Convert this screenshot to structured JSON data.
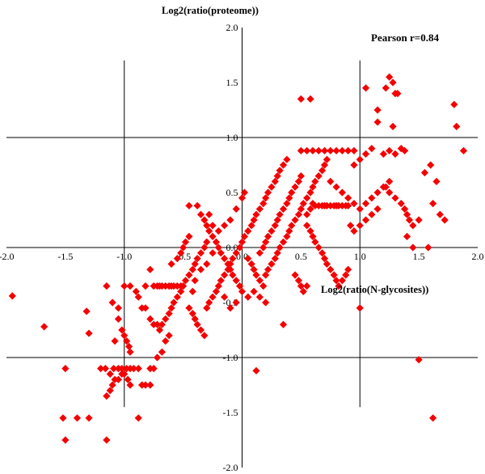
{
  "chart_data": {
    "type": "scatter",
    "title": "",
    "xlabel": "Log2(ratio(N-glycosites))",
    "ylabel": "Log2(ratio(proteome))",
    "annotation": "Pearson r=0.84",
    "xlim": [
      -2.0,
      2.0
    ],
    "ylim": [
      -2.0,
      2.0
    ],
    "x_ticks": [
      "-2.0",
      "-1.5",
      "-1.0",
      "-0.5",
      "0.0",
      "0.5",
      "1.0",
      "1.5",
      "2.0"
    ],
    "y_ticks": [
      "2.0",
      "1.5",
      "1.0",
      "0.5",
      "0.0",
      "-0.5",
      "-1.0",
      "-1.5",
      "-2.0"
    ],
    "threshold_lines": {
      "x": [
        -1.0,
        1.0
      ],
      "y": [
        -1.0,
        1.0
      ]
    },
    "marker": {
      "shape": "diamond",
      "color": "#f50000"
    },
    "grid": false,
    "series": [
      {
        "points": [
          [
            -1.95,
            -0.44
          ],
          [
            -1.68,
            -0.72
          ],
          [
            -1.5,
            -1.1
          ],
          [
            -1.52,
            -1.55
          ],
          [
            -1.5,
            -1.75
          ],
          [
            -1.4,
            -1.55
          ],
          [
            -1.3,
            -1.55
          ],
          [
            -1.32,
            -0.58
          ],
          [
            -1.3,
            -0.78
          ],
          [
            -1.2,
            -1.1
          ],
          [
            -1.16,
            -1.1
          ],
          [
            -1.12,
            -1.15
          ],
          [
            -1.09,
            -1.1
          ],
          [
            -1.05,
            -1.1
          ],
          [
            -1.02,
            -1.1
          ],
          [
            -0.98,
            -1.1
          ],
          [
            -0.95,
            -1.1
          ],
          [
            -0.92,
            -1.1
          ],
          [
            -0.88,
            -1.1
          ],
          [
            -1.15,
            -1.35
          ],
          [
            -1.12,
            -1.3
          ],
          [
            -1.1,
            -1.25
          ],
          [
            -1.08,
            -1.2
          ],
          [
            -1.05,
            -1.2
          ],
          [
            -1.02,
            -1.15
          ],
          [
            -1.0,
            -1.15
          ],
          [
            -0.97,
            -1.2
          ],
          [
            -0.95,
            -1.25
          ],
          [
            -1.15,
            -1.75
          ],
          [
            -0.88,
            -1.55
          ],
          [
            -0.85,
            -1.25
          ],
          [
            -0.82,
            -1.25
          ],
          [
            -0.78,
            -1.25
          ],
          [
            -0.78,
            -1.1
          ],
          [
            -0.75,
            -1.1
          ],
          [
            -0.72,
            -1.0
          ],
          [
            -0.68,
            -0.95
          ],
          [
            -0.65,
            -0.85
          ],
          [
            -0.62,
            -0.8
          ],
          [
            -1.15,
            -0.35
          ],
          [
            -1.1,
            -0.5
          ],
          [
            -1.05,
            -0.55
          ],
          [
            -1.05,
            -0.65
          ],
          [
            -1.02,
            -0.75
          ],
          [
            -1.0,
            -0.8
          ],
          [
            -0.98,
            -0.85
          ],
          [
            -0.96,
            -0.9
          ],
          [
            -0.95,
            -0.95
          ],
          [
            -1.08,
            -0.85
          ],
          [
            -1.0,
            -0.35
          ],
          [
            -0.95,
            -0.35
          ],
          [
            -0.9,
            -0.4
          ],
          [
            -0.88,
            -0.45
          ],
          [
            -0.85,
            -0.55
          ],
          [
            -0.82,
            -0.55
          ],
          [
            -0.78,
            -0.65
          ],
          [
            -0.75,
            -0.7
          ],
          [
            -0.72,
            -0.7
          ],
          [
            -0.7,
            -0.75
          ],
          [
            -0.68,
            -0.7
          ],
          [
            -0.65,
            -0.65
          ],
          [
            -0.62,
            -0.6
          ],
          [
            -0.6,
            -0.55
          ],
          [
            -0.58,
            -0.5
          ],
          [
            -0.55,
            -0.45
          ],
          [
            -0.52,
            -0.4
          ],
          [
            -0.5,
            -0.35
          ],
          [
            -0.48,
            -0.3
          ],
          [
            -0.45,
            -0.25
          ],
          [
            -0.42,
            -0.2
          ],
          [
            -0.4,
            -0.15
          ],
          [
            -0.38,
            -0.1
          ],
          [
            -0.35,
            -0.05
          ],
          [
            -0.32,
            0.0
          ],
          [
            -0.3,
            0.05
          ],
          [
            -0.78,
            -0.2
          ],
          [
            -0.82,
            -0.35
          ],
          [
            -0.75,
            -0.35
          ],
          [
            -0.72,
            -0.35
          ],
          [
            -0.7,
            -0.35
          ],
          [
            -0.68,
            -0.35
          ],
          [
            -0.65,
            -0.35
          ],
          [
            -0.62,
            -0.35
          ],
          [
            -0.6,
            -0.35
          ],
          [
            -0.58,
            -0.35
          ],
          [
            -0.55,
            -0.35
          ],
          [
            -0.52,
            -0.35
          ],
          [
            -0.6,
            -0.15
          ],
          [
            -0.55,
            -0.1
          ],
          [
            -0.52,
            -0.05
          ],
          [
            -0.5,
            0.0
          ],
          [
            -0.48,
            0.05
          ],
          [
            -0.45,
            0.1
          ],
          [
            -0.45,
            0.38
          ],
          [
            -0.38,
            0.38
          ],
          [
            -0.35,
            0.3
          ],
          [
            -0.32,
            0.25
          ],
          [
            -0.3,
            0.2
          ],
          [
            -0.28,
            0.15
          ],
          [
            -0.25,
            0.1
          ],
          [
            -0.22,
            0.05
          ],
          [
            -0.2,
            0.0
          ],
          [
            -0.18,
            -0.05
          ],
          [
            -0.15,
            -0.1
          ],
          [
            -0.12,
            -0.15
          ],
          [
            -0.1,
            -0.2
          ],
          [
            -0.08,
            -0.25
          ],
          [
            -0.05,
            -0.3
          ],
          [
            -0.02,
            -0.35
          ],
          [
            0.0,
            -0.4
          ],
          [
            -0.45,
            -0.55
          ],
          [
            -0.42,
            -0.6
          ],
          [
            -0.4,
            -0.65
          ],
          [
            -0.38,
            -0.7
          ],
          [
            -0.35,
            -0.75
          ],
          [
            -0.32,
            -0.8
          ],
          [
            -0.3,
            -0.55
          ],
          [
            -0.28,
            -0.5
          ],
          [
            -0.25,
            -0.45
          ],
          [
            -0.22,
            -0.4
          ],
          [
            -0.2,
            -0.35
          ],
          [
            -0.18,
            -0.3
          ],
          [
            -0.15,
            -0.25
          ],
          [
            -0.12,
            -0.2
          ],
          [
            -0.1,
            -0.15
          ],
          [
            -0.08,
            -0.1
          ],
          [
            -0.05,
            -0.05
          ],
          [
            -0.02,
            0.0
          ],
          [
            0.0,
            0.05
          ],
          [
            0.02,
            0.1
          ],
          [
            0.05,
            0.15
          ],
          [
            0.08,
            0.2
          ],
          [
            0.1,
            0.25
          ],
          [
            0.12,
            0.3
          ],
          [
            -0.05,
            0.35
          ],
          [
            0.0,
            0.45
          ],
          [
            0.02,
            0.5
          ],
          [
            -0.1,
            0.25
          ],
          [
            -0.15,
            0.2
          ],
          [
            -0.2,
            0.15
          ],
          [
            -0.25,
            0.2
          ],
          [
            -0.28,
            0.3
          ],
          [
            0.15,
            0.35
          ],
          [
            0.18,
            0.4
          ],
          [
            0.2,
            0.45
          ],
          [
            0.22,
            0.5
          ],
          [
            0.25,
            0.55
          ],
          [
            0.28,
            0.6
          ],
          [
            0.3,
            0.65
          ],
          [
            0.32,
            0.7
          ],
          [
            0.35,
            0.75
          ],
          [
            0.38,
            0.8
          ],
          [
            0.15,
            -0.05
          ],
          [
            0.18,
            0.0
          ],
          [
            0.2,
            0.05
          ],
          [
            0.22,
            0.1
          ],
          [
            0.25,
            0.15
          ],
          [
            0.28,
            0.2
          ],
          [
            0.3,
            0.25
          ],
          [
            0.32,
            0.3
          ],
          [
            0.35,
            0.35
          ],
          [
            0.38,
            0.4
          ],
          [
            0.4,
            0.45
          ],
          [
            0.42,
            0.5
          ],
          [
            0.45,
            0.55
          ],
          [
            0.48,
            0.6
          ],
          [
            0.5,
            0.65
          ],
          [
            0.05,
            -0.1
          ],
          [
            0.08,
            -0.15
          ],
          [
            0.1,
            -0.2
          ],
          [
            0.12,
            -0.25
          ],
          [
            0.15,
            -0.3
          ],
          [
            0.18,
            -0.35
          ],
          [
            0.2,
            -0.25
          ],
          [
            0.22,
            -0.2
          ],
          [
            0.25,
            -0.15
          ],
          [
            0.28,
            -0.1
          ],
          [
            0.3,
            -0.05
          ],
          [
            0.32,
            0.0
          ],
          [
            0.35,
            0.05
          ],
          [
            0.38,
            0.1
          ],
          [
            0.4,
            0.15
          ],
          [
            0.42,
            0.2
          ],
          [
            0.45,
            0.25
          ],
          [
            0.48,
            0.3
          ],
          [
            0.5,
            0.35
          ],
          [
            0.52,
            0.4
          ],
          [
            0.55,
            0.45
          ],
          [
            0.58,
            0.5
          ],
          [
            0.6,
            0.55
          ],
          [
            0.62,
            0.6
          ],
          [
            0.65,
            0.65
          ],
          [
            0.68,
            0.7
          ],
          [
            0.7,
            0.75
          ],
          [
            0.72,
            0.8
          ],
          [
            0.55,
            0.3
          ],
          [
            0.58,
            0.35
          ],
          [
            0.6,
            0.4
          ],
          [
            0.62,
            0.38
          ],
          [
            0.65,
            0.38
          ],
          [
            0.68,
            0.38
          ],
          [
            0.7,
            0.38
          ],
          [
            0.72,
            0.38
          ],
          [
            0.75,
            0.38
          ],
          [
            0.78,
            0.38
          ],
          [
            0.8,
            0.38
          ],
          [
            0.82,
            0.38
          ],
          [
            0.85,
            0.38
          ],
          [
            0.88,
            0.38
          ],
          [
            0.9,
            0.38
          ],
          [
            0.55,
            0.2
          ],
          [
            0.58,
            0.15
          ],
          [
            0.6,
            0.1
          ],
          [
            0.62,
            0.05
          ],
          [
            0.65,
            0.0
          ],
          [
            0.68,
            -0.05
          ],
          [
            0.7,
            -0.1
          ],
          [
            0.72,
            -0.15
          ],
          [
            0.75,
            -0.2
          ],
          [
            0.78,
            -0.25
          ],
          [
            0.8,
            -0.3
          ],
          [
            0.82,
            -0.35
          ],
          [
            0.85,
            -0.3
          ],
          [
            0.88,
            -0.25
          ],
          [
            0.9,
            -0.2
          ],
          [
            0.45,
            -0.25
          ],
          [
            0.48,
            -0.3
          ],
          [
            0.5,
            -0.35
          ],
          [
            0.52,
            -0.4
          ],
          [
            0.55,
            -0.35
          ],
          [
            0.35,
            -0.7
          ],
          [
            0.5,
            1.35
          ],
          [
            0.58,
            1.35
          ],
          [
            0.5,
            0.88
          ],
          [
            0.55,
            0.88
          ],
          [
            0.6,
            0.88
          ],
          [
            0.65,
            0.88
          ],
          [
            0.7,
            0.88
          ],
          [
            0.75,
            0.88
          ],
          [
            0.8,
            0.88
          ],
          [
            0.85,
            0.88
          ],
          [
            0.9,
            0.88
          ],
          [
            0.95,
            0.88
          ],
          [
            0.75,
            0.6
          ],
          [
            0.8,
            0.55
          ],
          [
            0.85,
            0.5
          ],
          [
            0.9,
            0.45
          ],
          [
            0.95,
            0.4
          ],
          [
            1.0,
            0.35
          ],
          [
            1.05,
            0.4
          ],
          [
            1.1,
            0.45
          ],
          [
            1.15,
            0.5
          ],
          [
            1.2,
            0.55
          ],
          [
            1.25,
            0.6
          ],
          [
            0.95,
            0.75
          ],
          [
            1.0,
            0.8
          ],
          [
            1.05,
            0.85
          ],
          [
            1.1,
            0.9
          ],
          [
            0.92,
            0.2
          ],
          [
            0.95,
            0.15
          ],
          [
            1.0,
            0.2
          ],
          [
            1.05,
            0.25
          ],
          [
            1.1,
            0.3
          ],
          [
            1.15,
            0.35
          ],
          [
            1.0,
            -0.55
          ],
          [
            1.05,
            1.45
          ],
          [
            1.15,
            1.25
          ],
          [
            1.22,
            1.45
          ],
          [
            1.25,
            1.55
          ],
          [
            1.28,
            1.5
          ],
          [
            1.3,
            1.4
          ],
          [
            1.32,
            1.4
          ],
          [
            1.28,
            1.1
          ],
          [
            1.15,
            1.14
          ],
          [
            1.2,
            0.85
          ],
          [
            1.25,
            0.88
          ],
          [
            1.3,
            0.85
          ],
          [
            1.35,
            0.9
          ],
          [
            1.38,
            0.88
          ],
          [
            1.22,
            0.55
          ],
          [
            1.25,
            0.5
          ],
          [
            1.3,
            0.45
          ],
          [
            1.35,
            0.4
          ],
          [
            1.38,
            0.35
          ],
          [
            1.4,
            0.3
          ],
          [
            1.42,
            0.25
          ],
          [
            1.45,
            0.2
          ],
          [
            1.5,
            0.25
          ],
          [
            1.45,
            0.0
          ],
          [
            1.4,
            0.1
          ],
          [
            1.55,
            0.68
          ],
          [
            1.6,
            0.75
          ],
          [
            1.65,
            0.6
          ],
          [
            1.62,
            0.4
          ],
          [
            1.68,
            0.3
          ],
          [
            1.58,
            0.0
          ],
          [
            1.8,
            1.3
          ],
          [
            1.82,
            1.1
          ],
          [
            1.88,
            0.88
          ],
          [
            1.72,
            0.25
          ],
          [
            1.5,
            -1.02
          ],
          [
            1.62,
            -1.55
          ],
          [
            -0.15,
            -0.45
          ],
          [
            -0.1,
            -0.55
          ],
          [
            -0.05,
            -0.5
          ],
          [
            0.05,
            -0.45
          ],
          [
            0.1,
            -0.4
          ],
          [
            0.15,
            -0.45
          ],
          [
            0.2,
            -0.5
          ],
          [
            0.12,
            -1.12
          ],
          [
            -0.25,
            -0.05
          ],
          [
            -0.3,
            -0.15
          ],
          [
            -0.35,
            -0.2
          ],
          [
            -0.4,
            -0.3
          ],
          [
            -0.42,
            -0.4
          ]
        ]
      }
    ]
  }
}
